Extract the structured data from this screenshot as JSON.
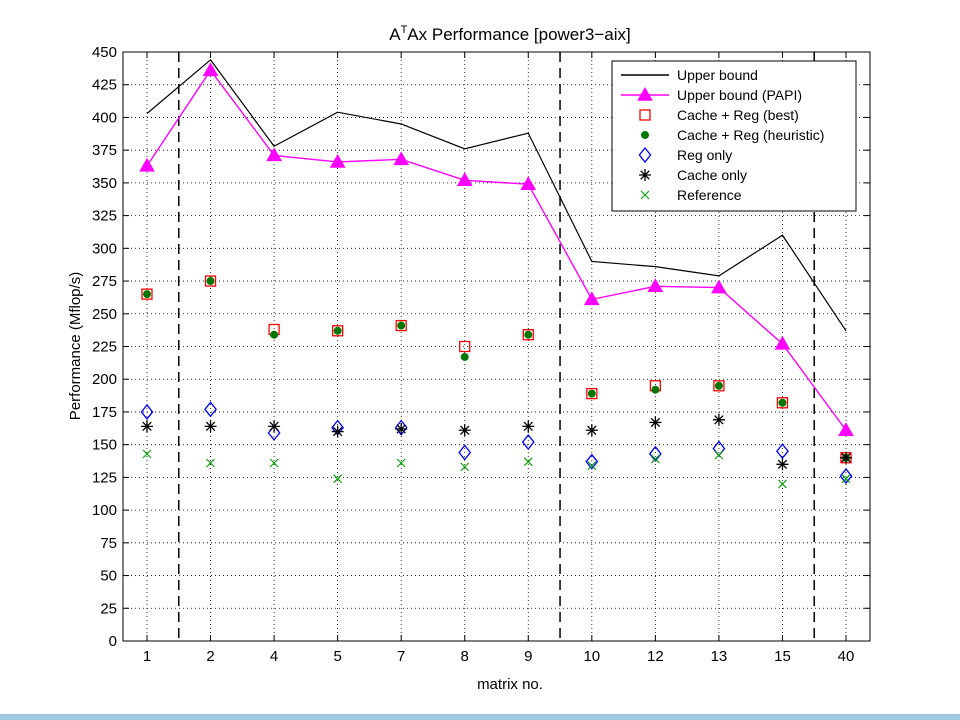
{
  "chart_data": {
    "type": "line",
    "title_base": "A",
    "title_sup": "T",
    "title_rest": "Ax Performance [power3−aix]",
    "xlabel": "matrix no.",
    "ylabel": "Performance (Mflop/s)",
    "categories": [
      "1",
      "2",
      "4",
      "5",
      "7",
      "8",
      "9",
      "10",
      "12",
      "13",
      "15",
      "40"
    ],
    "ylim": [
      0,
      450
    ],
    "yticks": [
      0,
      25,
      50,
      75,
      100,
      125,
      150,
      175,
      200,
      225,
      250,
      275,
      300,
      325,
      350,
      375,
      400,
      425,
      450
    ],
    "grid": true,
    "legend_position": "top-right",
    "group_separators_after": [
      "1",
      "9",
      "15"
    ],
    "series": [
      {
        "name": "Upper bound",
        "style": "line",
        "color": "#000000",
        "values": [
          403,
          444,
          378,
          404,
          395,
          376,
          388,
          290,
          286,
          279,
          310,
          237
        ]
      },
      {
        "name": "Upper bound (PAPI)",
        "style": "line-triangle",
        "color": "#ff00ff",
        "values": [
          363,
          436,
          371,
          366,
          368,
          352,
          349,
          261,
          271,
          270,
          227,
          161
        ]
      },
      {
        "name": "Cache + Reg (best)",
        "style": "square",
        "color": "#ff0000",
        "values": [
          265,
          275,
          238,
          237,
          241,
          225,
          234,
          189,
          195,
          195,
          182,
          140
        ]
      },
      {
        "name": "Cache + Reg (heuristic)",
        "style": "dot",
        "color": "#007700",
        "values": [
          265,
          275,
          234,
          237,
          241,
          217,
          234,
          189,
          192,
          195,
          182,
          140
        ]
      },
      {
        "name": "Reg only",
        "style": "diamond",
        "color": "#0000ff",
        "values": [
          175,
          177,
          159,
          163,
          163,
          144,
          152,
          137,
          143,
          147,
          145,
          126
        ]
      },
      {
        "name": "Cache only",
        "style": "asterisk",
        "color": "#000000",
        "values": [
          164,
          164,
          164,
          160,
          162,
          161,
          164,
          161,
          167,
          169,
          135,
          140
        ]
      },
      {
        "name": "Reference",
        "style": "cross",
        "color": "#00a000",
        "values": [
          143,
          136,
          136,
          124,
          136,
          133,
          137,
          134,
          139,
          142,
          120,
          124
        ]
      }
    ]
  }
}
